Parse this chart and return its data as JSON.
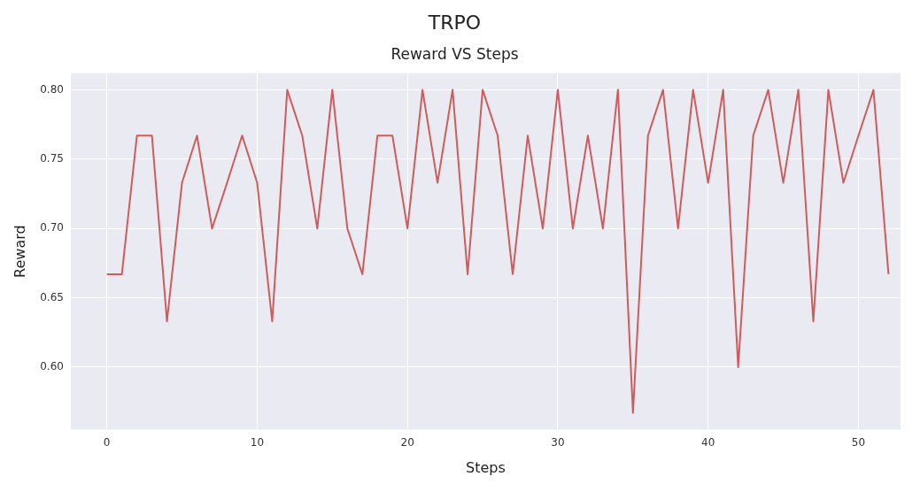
{
  "chart_data": {
    "type": "line",
    "title": "TRPO",
    "subtitle": "Reward VS Steps",
    "xlabel": "Steps",
    "ylabel": "Reward",
    "x": [
      0,
      1,
      2,
      3,
      4,
      5,
      6,
      7,
      8,
      9,
      10,
      11,
      12,
      13,
      14,
      15,
      16,
      17,
      18,
      19,
      20,
      21,
      22,
      23,
      24,
      25,
      26,
      27,
      28,
      29,
      30,
      31,
      32,
      33,
      34,
      35,
      36,
      37,
      38,
      39,
      40,
      41,
      42,
      43,
      44,
      45,
      46,
      47,
      48,
      49,
      50,
      51,
      52
    ],
    "series": [
      {
        "color": "#cd5c5c",
        "values": [
          0.667,
          0.667,
          0.767,
          0.767,
          0.633,
          0.733,
          0.767,
          0.7,
          0.733,
          0.767,
          0.733,
          0.633,
          0.8,
          0.767,
          0.7,
          0.8,
          0.7,
          0.667,
          0.767,
          0.767,
          0.7,
          0.8,
          0.733,
          0.8,
          0.667,
          0.8,
          0.767,
          0.667,
          0.767,
          0.7,
          0.8,
          0.7,
          0.767,
          0.7,
          0.8,
          0.567,
          0.767,
          0.8,
          0.7,
          0.8,
          0.733,
          0.8,
          0.6,
          0.767,
          0.8,
          0.733,
          0.8,
          0.633,
          0.8,
          0.733,
          0.767,
          0.8,
          0.667
        ]
      }
    ],
    "xlim": [
      -2.4,
      52.8
    ],
    "ylim": [
      0.555,
      0.812
    ],
    "xticks": [
      0,
      10,
      20,
      30,
      40,
      50
    ],
    "yticks": [
      {
        "value": 0.6,
        "label": "0.60"
      },
      {
        "value": 0.65,
        "label": "0.65"
      },
      {
        "value": 0.7,
        "label": "0.70"
      },
      {
        "value": 0.75,
        "label": "0.75"
      },
      {
        "value": 0.8,
        "label": "0.80"
      }
    ],
    "grid": true,
    "legend": false,
    "marker": "none",
    "line_style": "solid"
  }
}
